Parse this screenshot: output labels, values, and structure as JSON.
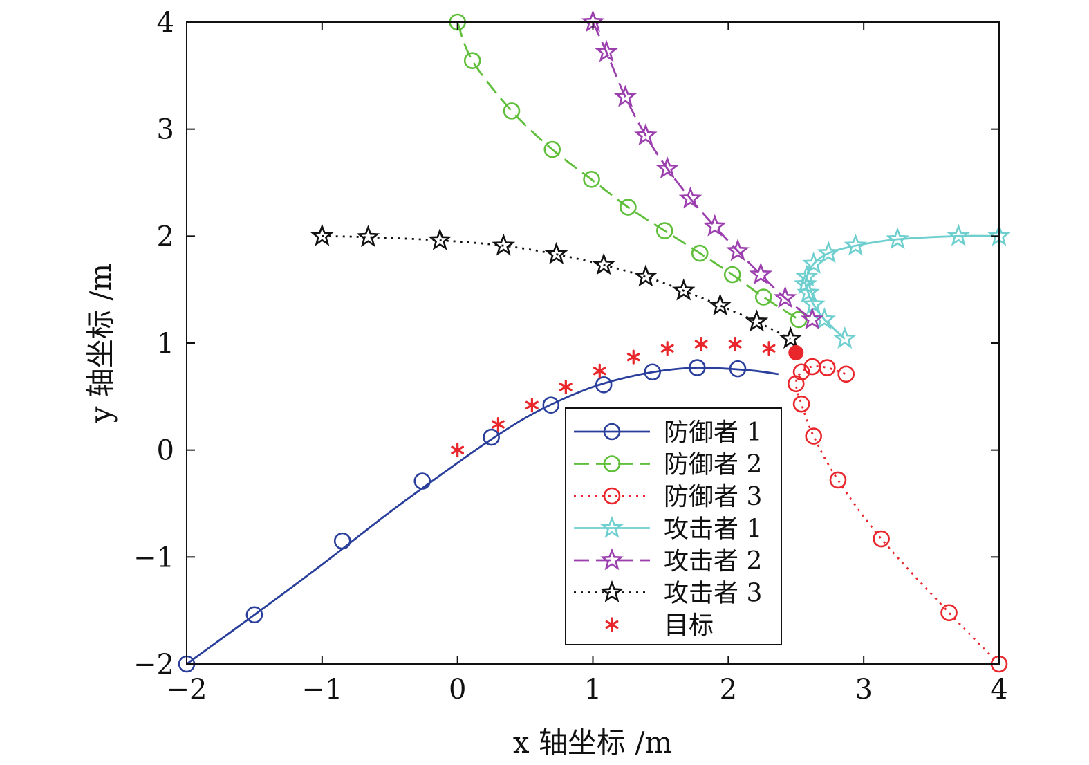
{
  "chart_data": {
    "type": "line",
    "xlabel": "x 轴坐标 /m",
    "ylabel": "y 轴坐标 /m",
    "xlim": [
      -2,
      4
    ],
    "ylim": [
      -2,
      4
    ],
    "xticks": [
      "−2",
      "−1",
      "0",
      "1",
      "2",
      "3",
      "4"
    ],
    "yticks": [
      "−2",
      "−1",
      "0",
      "1",
      "2",
      "3",
      "4"
    ],
    "grid": false,
    "legend_position": "lower-right-inside",
    "series": [
      {
        "name": "防御者 1",
        "color": "#2a3f9b",
        "line": "solid",
        "marker": "circle",
        "curve": [
          [
            -2,
            -2
          ],
          [
            -1.5,
            -1.54
          ],
          [
            -1,
            -1.07
          ],
          [
            -0.5,
            -0.58
          ],
          [
            0,
            -0.12
          ],
          [
            0.25,
            0.1
          ],
          [
            0.5,
            0.3
          ],
          [
            0.75,
            0.46
          ],
          [
            1,
            0.59
          ],
          [
            1.25,
            0.68
          ],
          [
            1.5,
            0.74
          ],
          [
            1.75,
            0.77
          ],
          [
            2,
            0.76
          ],
          [
            2.2,
            0.74
          ],
          [
            2.37,
            0.71
          ]
        ],
        "markers": [
          [
            -2,
            -2
          ],
          [
            -1.5,
            -1.54
          ],
          [
            -0.85,
            -0.85
          ],
          [
            -0.26,
            -0.29
          ],
          [
            0.25,
            0.12
          ],
          [
            0.69,
            0.42
          ],
          [
            1.08,
            0.61
          ],
          [
            1.44,
            0.73
          ],
          [
            1.77,
            0.77
          ],
          [
            2.07,
            0.76
          ]
        ]
      },
      {
        "name": "防御者 2",
        "color": "#5fbf3b",
        "line": "dashed",
        "marker": "circle",
        "curve": [
          [
            0,
            4
          ],
          [
            0.11,
            3.64
          ],
          [
            0.4,
            3.17
          ],
          [
            0.7,
            2.81
          ],
          [
            0.99,
            2.53
          ],
          [
            1.26,
            2.27
          ],
          [
            1.53,
            2.05
          ],
          [
            1.79,
            1.84
          ],
          [
            2.03,
            1.64
          ],
          [
            2.26,
            1.43
          ],
          [
            2.52,
            1.22
          ]
        ],
        "markers": [
          [
            0,
            4
          ],
          [
            0.11,
            3.64
          ],
          [
            0.4,
            3.17
          ],
          [
            0.7,
            2.81
          ],
          [
            0.99,
            2.53
          ],
          [
            1.26,
            2.27
          ],
          [
            1.53,
            2.05
          ],
          [
            1.79,
            1.84
          ],
          [
            2.03,
            1.64
          ],
          [
            2.26,
            1.43
          ],
          [
            2.52,
            1.22
          ]
        ]
      },
      {
        "name": "防御者 3",
        "color": "#e8262c",
        "line": "dotted",
        "marker": "circle",
        "curve": [
          [
            4,
            -2
          ],
          [
            3.63,
            -1.52
          ],
          [
            3.13,
            -0.83
          ],
          [
            2.81,
            -0.28
          ],
          [
            2.63,
            0.13
          ],
          [
            2.54,
            0.43
          ],
          [
            2.5,
            0.62
          ],
          [
            2.54,
            0.73
          ],
          [
            2.62,
            0.78
          ],
          [
            2.73,
            0.77
          ],
          [
            2.87,
            0.71
          ]
        ],
        "markers": [
          [
            4,
            -2
          ],
          [
            3.63,
            -1.52
          ],
          [
            3.13,
            -0.83
          ],
          [
            2.81,
            -0.28
          ],
          [
            2.63,
            0.13
          ],
          [
            2.54,
            0.43
          ],
          [
            2.5,
            0.62
          ],
          [
            2.54,
            0.73
          ],
          [
            2.62,
            0.78
          ],
          [
            2.73,
            0.77
          ],
          [
            2.87,
            0.71
          ]
        ]
      },
      {
        "name": "攻击者 1",
        "color": "#6fcfcf",
        "line": "solid",
        "marker": "star",
        "curve": [
          [
            4,
            2
          ],
          [
            3.7,
            2
          ],
          [
            3.25,
            1.97
          ],
          [
            2.94,
            1.91
          ],
          [
            2.74,
            1.84
          ],
          [
            2.63,
            1.74
          ],
          [
            2.58,
            1.62
          ],
          [
            2.57,
            1.55
          ],
          [
            2.59,
            1.47
          ],
          [
            2.63,
            1.36
          ],
          [
            2.71,
            1.22
          ],
          [
            2.86,
            1.04
          ]
        ],
        "markers": [
          [
            4,
            2
          ],
          [
            3.7,
            2
          ],
          [
            3.25,
            1.97
          ],
          [
            2.94,
            1.91
          ],
          [
            2.74,
            1.84
          ],
          [
            2.63,
            1.74
          ],
          [
            2.58,
            1.62
          ],
          [
            2.57,
            1.55
          ],
          [
            2.59,
            1.47
          ],
          [
            2.63,
            1.36
          ],
          [
            2.71,
            1.22
          ],
          [
            2.86,
            1.04
          ]
        ]
      },
      {
        "name": "攻击者 2",
        "color": "#9b3fae",
        "line": "dashed",
        "marker": "star",
        "curve": [
          [
            1,
            4
          ],
          [
            1.1,
            3.72
          ],
          [
            1.24,
            3.3
          ],
          [
            1.39,
            2.94
          ],
          [
            1.55,
            2.63
          ],
          [
            1.72,
            2.35
          ],
          [
            1.9,
            2.09
          ],
          [
            2.07,
            1.86
          ],
          [
            2.24,
            1.64
          ],
          [
            2.42,
            1.42
          ],
          [
            2.62,
            1.22
          ]
        ],
        "markers": [
          [
            1,
            4
          ],
          [
            1.1,
            3.72
          ],
          [
            1.24,
            3.3
          ],
          [
            1.39,
            2.94
          ],
          [
            1.55,
            2.63
          ],
          [
            1.72,
            2.35
          ],
          [
            1.9,
            2.09
          ],
          [
            2.07,
            1.86
          ],
          [
            2.24,
            1.64
          ],
          [
            2.42,
            1.42
          ],
          [
            2.62,
            1.22
          ]
        ]
      },
      {
        "name": "攻击者 3",
        "color": "#111111",
        "line": "dotted",
        "marker": "star",
        "curve": [
          [
            -1,
            2
          ],
          [
            -0.66,
            1.99
          ],
          [
            -0.13,
            1.96
          ],
          [
            0.34,
            1.91
          ],
          [
            0.73,
            1.83
          ],
          [
            1.08,
            1.73
          ],
          [
            1.39,
            1.62
          ],
          [
            1.67,
            1.49
          ],
          [
            1.94,
            1.35
          ],
          [
            2.21,
            1.2
          ],
          [
            2.46,
            1.04
          ]
        ],
        "markers": [
          [
            -1,
            2
          ],
          [
            -0.66,
            1.99
          ],
          [
            -0.13,
            1.96
          ],
          [
            0.34,
            1.91
          ],
          [
            0.73,
            1.83
          ],
          [
            1.08,
            1.73
          ],
          [
            1.39,
            1.62
          ],
          [
            1.67,
            1.49
          ],
          [
            1.94,
            1.35
          ],
          [
            2.21,
            1.2
          ],
          [
            2.46,
            1.04
          ]
        ]
      },
      {
        "name": "目标",
        "color": "#e8262c",
        "line": "none",
        "marker": "asterisk",
        "curve": [],
        "markers": [
          [
            0,
            0
          ],
          [
            0.3,
            0.24
          ],
          [
            0.55,
            0.42
          ],
          [
            0.8,
            0.59
          ],
          [
            1.05,
            0.74
          ],
          [
            1.3,
            0.87
          ],
          [
            1.55,
            0.95
          ],
          [
            1.8,
            0.99
          ],
          [
            2.05,
            0.99
          ],
          [
            2.3,
            0.95
          ]
        ]
      }
    ],
    "target_point": {
      "x": 2.5,
      "y": 0.91,
      "color": "#e8262c"
    }
  }
}
